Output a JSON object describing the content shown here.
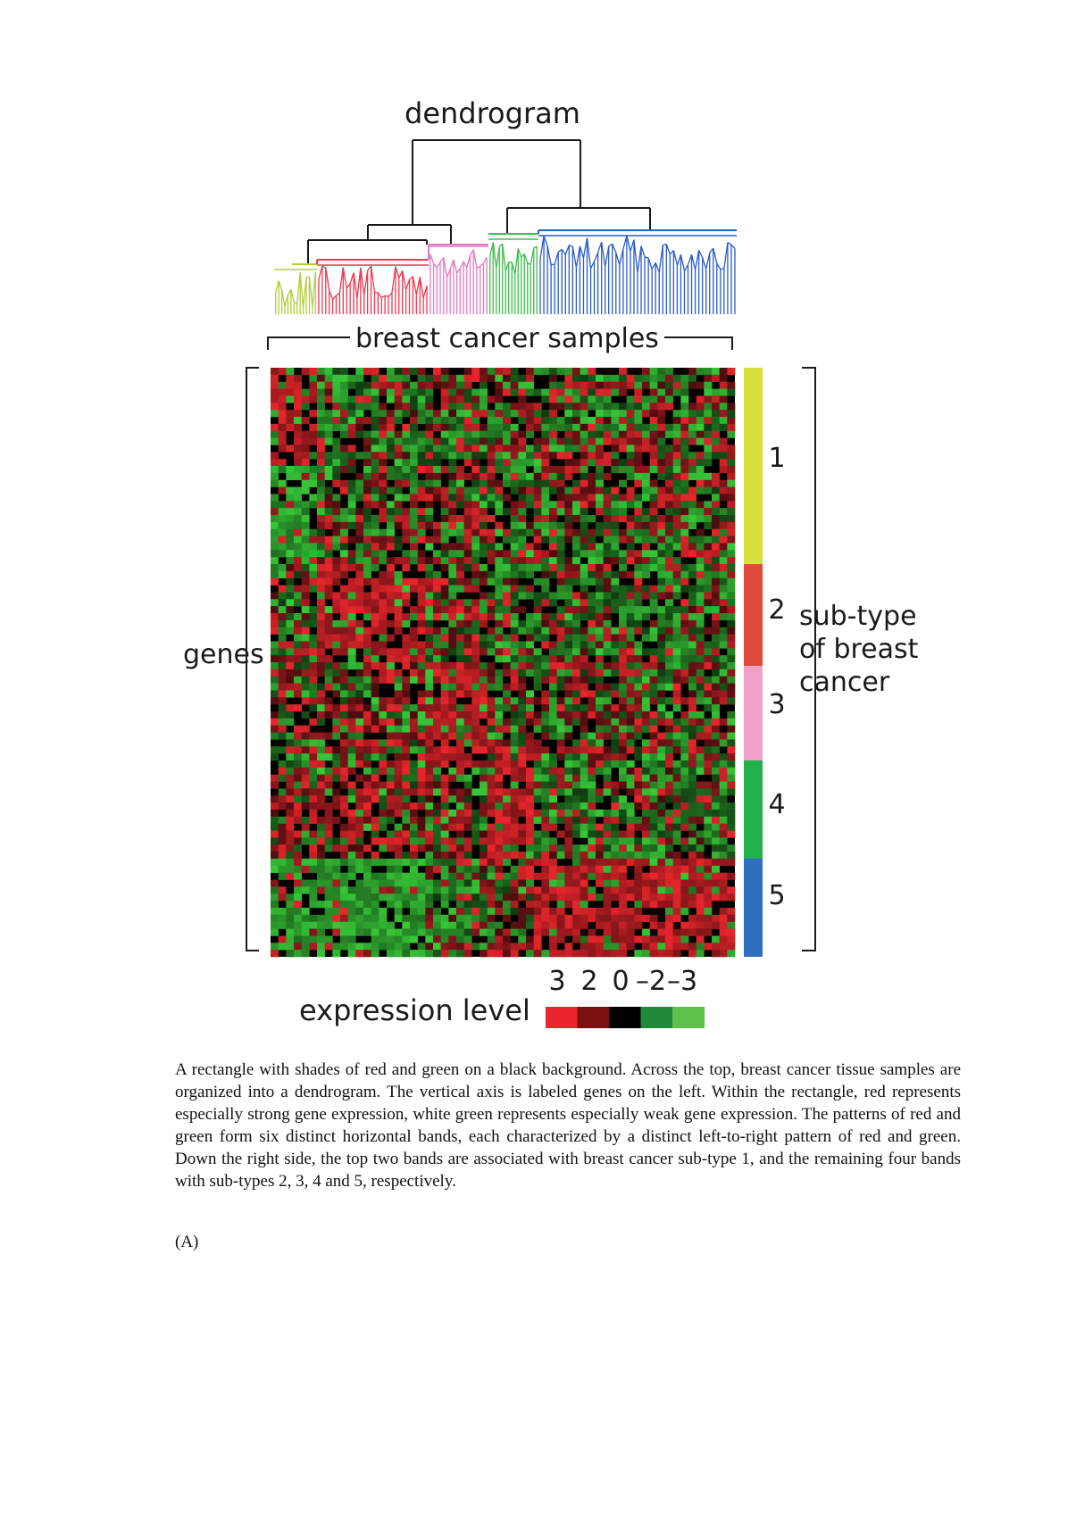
{
  "figure": {
    "title": "dendrogram",
    "samples_label": "breast cancer samples",
    "genes_label": "genes",
    "subtype_label_lines": [
      "sub-type",
      "of breast",
      "cancer"
    ],
    "subtypes": [
      {
        "label": "1",
        "color": "#d9df3c"
      },
      {
        "label": "2",
        "color": "#e04a3a"
      },
      {
        "label": "3",
        "color": "#f0a1c7"
      },
      {
        "label": "4",
        "color": "#22b14c"
      },
      {
        "label": "5",
        "color": "#2e6fc0"
      }
    ],
    "dendrogram_colors": {
      "trunk": "#1a1a1a",
      "cluster_1": "#b5cc3c",
      "cluster_2": "#f0384f",
      "cluster_3": "#e57bc3",
      "cluster_4": "#3cbf4a",
      "cluster_5": "#2b5cc9"
    },
    "heatmap_colors": {
      "high": "#e8262c",
      "low": "#38c838",
      "background": "#000000"
    },
    "expression_legend": {
      "label": "expression level",
      "ticks": [
        "3",
        "2",
        "0",
        "–2",
        "–3"
      ],
      "colors": [
        "#e8262c",
        "#7a1010",
        "#000000",
        "#1f8a3a",
        "#5cc24a"
      ]
    }
  },
  "caption": "A rectangle with shades of red and green on a black background. Across the top, breast cancer tissue samples are organized into a dendrogram. The vertical axis is labeled genes on the left. Within the rectangle, red represents especially strong gene expression, white green represents especially weak gene expression. The patterns of red and green form six distinct horizontal bands, each characterized by a distinct left-to-right pattern of red and green. Down the right side, the top two bands are associated with breast cancer sub-type 1, and the remaining four bands with sub-types 2, 3, 4 and 5, respectively.",
  "panel_label": "(A)"
}
